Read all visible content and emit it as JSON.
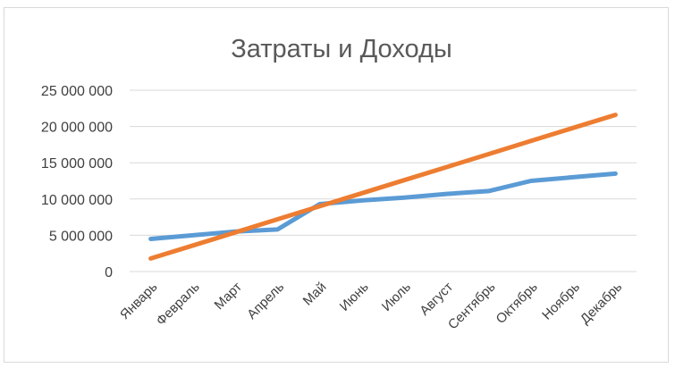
{
  "chart_data": {
    "type": "line",
    "title": "Затраты и Доходы",
    "categories": [
      "Январь",
      "Февраль",
      "Март",
      "Апрель",
      "Май",
      "Июнь",
      "Июль",
      "Август",
      "Сентябрь",
      "Октябрь",
      "Ноябрь",
      "Декабрь"
    ],
    "series": [
      {
        "color": "#5b9bd5",
        "values": [
          4500000,
          5000000,
          5500000,
          5800000,
          9300000,
          9800000,
          10200000,
          10700000,
          11100000,
          12500000,
          13000000,
          13500000
        ]
      },
      {
        "color": "#ed7d31",
        "values": [
          1800000,
          3600000,
          5400000,
          7200000,
          9000000,
          10800000,
          12600000,
          14400000,
          16200000,
          18000000,
          19800000,
          21600000
        ]
      }
    ],
    "ylim": [
      0,
      25000000
    ],
    "yticks": [
      {
        "value": 0,
        "label": "0"
      },
      {
        "value": 5000000,
        "label": "5 000 000"
      },
      {
        "value": 10000000,
        "label": "10 000 000"
      },
      {
        "value": 15000000,
        "label": "15 000 000"
      },
      {
        "value": 20000000,
        "label": "20 000 000"
      },
      {
        "value": 25000000,
        "label": "25 000 000"
      }
    ],
    "grid": true,
    "legend": "none"
  }
}
